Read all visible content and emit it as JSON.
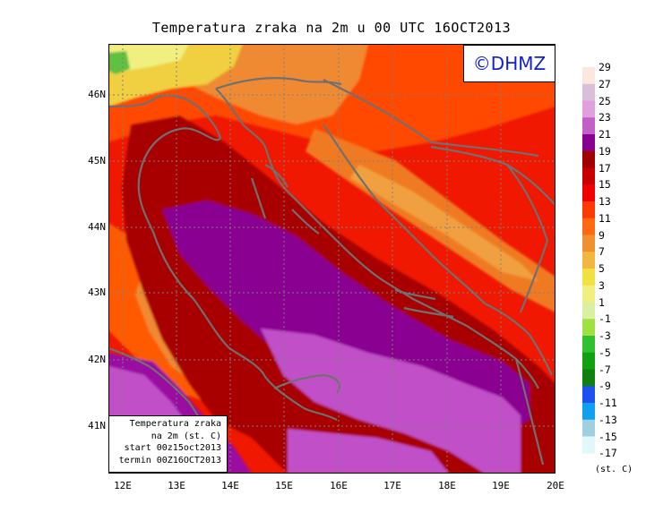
{
  "title": "Temperatura zraka na 2m u 00 UTC 16OCT2013",
  "copyright": "©DHMZ",
  "lat_labels": [
    "46N",
    "45N",
    "44N",
    "43N",
    "42N",
    "41N"
  ],
  "lon_labels": [
    "12E",
    "13E",
    "14E",
    "15E",
    "16E",
    "17E",
    "18E",
    "19E",
    "20E"
  ],
  "legend_box": {
    "line1": "Temperatura zraka",
    "line2": "na 2m (st. C)",
    "line3": "start 00z15oct2013",
    "line4": "termin 00Z16OCT2013"
  },
  "colorbar": {
    "labels": [
      "29",
      "27",
      "25",
      "23",
      "21",
      "19",
      "17",
      "15",
      "13",
      "11",
      "9",
      "7",
      "5",
      "3",
      "1",
      "-1",
      "-3",
      "-5",
      "-7",
      "-9",
      "-11",
      "-13",
      "-15",
      "-17"
    ],
    "colors": [
      "#fbe8dc",
      "#d8c0d8",
      "#e0a0e0",
      "#c060c8",
      "#880090",
      "#a00000",
      "#c80000",
      "#f00000",
      "#ff3a00",
      "#ff6a10",
      "#f09030",
      "#f0b840",
      "#f0e040",
      "#f0f080",
      "#d8f0a0",
      "#a0e040",
      "#30c030",
      "#10a010",
      "#108010",
      "#2050f0",
      "#10a0f0",
      "#a0d0e0",
      "#e0f8f8"
    ],
    "unit": "(st. C)"
  }
}
